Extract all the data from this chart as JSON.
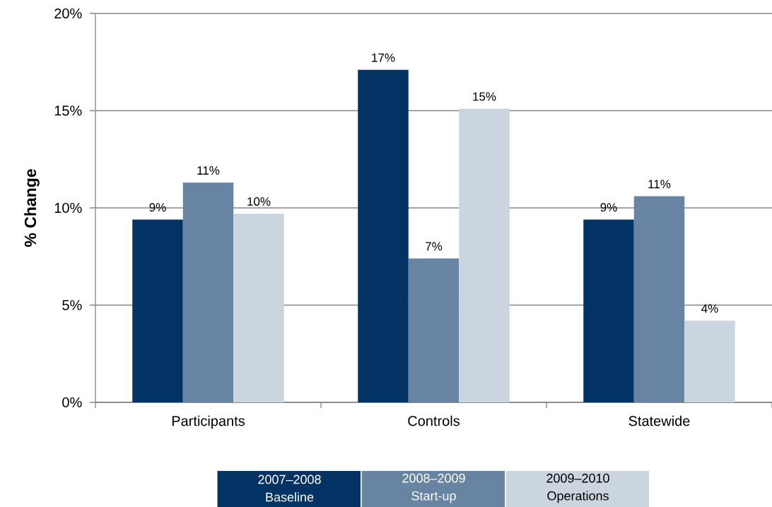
{
  "chart_data": {
    "type": "bar",
    "ylabel": "% Change",
    "categories": [
      "Participants",
      "Controls",
      "Statewide"
    ],
    "series": [
      {
        "name": "2007–2008 Baseline",
        "color": "#033264",
        "values": [
          9.4,
          17.1,
          9.4
        ],
        "value_labels": [
          "9%",
          "17%",
          "9%"
        ]
      },
      {
        "name": "2008–2009 Start-up",
        "color": "#6784a3",
        "values": [
          11.3,
          7.4,
          10.6
        ],
        "value_labels": [
          "11%",
          "7%",
          "11%"
        ]
      },
      {
        "name": "2009–2010 Operations",
        "color": "#cbd5e0",
        "values": [
          9.7,
          15.1,
          4.2
        ],
        "value_labels": [
          "10%",
          "15%",
          "4%"
        ]
      }
    ],
    "ylim": [
      0,
      20
    ],
    "yticks": [
      {
        "value": 0,
        "label": "0%"
      },
      {
        "value": 5,
        "label": "5%"
      },
      {
        "value": 10,
        "label": "10%"
      },
      {
        "value": 15,
        "label": "15%"
      },
      {
        "value": 20,
        "label": "20%"
      }
    ],
    "grid": "y",
    "legend": "bottom"
  }
}
